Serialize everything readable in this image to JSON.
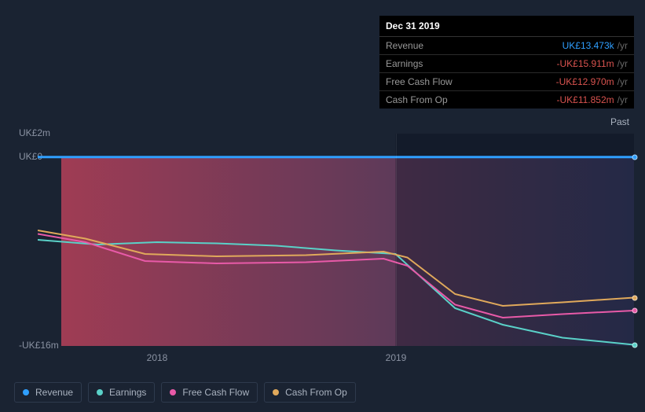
{
  "tooltip": {
    "date": "Dec 31 2019",
    "rows": [
      {
        "label": "Revenue",
        "value": "UK£13.473k",
        "unit": "/yr",
        "cls": "val-blue"
      },
      {
        "label": "Earnings",
        "value": "-UK£15.911m",
        "unit": "/yr",
        "cls": "val-red"
      },
      {
        "label": "Free Cash Flow",
        "value": "-UK£12.970m",
        "unit": "/yr",
        "cls": "val-red"
      },
      {
        "label": "Cash From Op",
        "value": "-UK£11.852m",
        "unit": "/yr",
        "cls": "val-red"
      }
    ]
  },
  "chart": {
    "ymin": -16,
    "ymax": 2,
    "yticks": [
      {
        "v": 2,
        "label": "UK£2m"
      },
      {
        "v": 0,
        "label": "UK£0"
      },
      {
        "v": -16,
        "label": "-UK£16m"
      }
    ],
    "xticks": [
      {
        "x": 0.2,
        "label": "2018"
      },
      {
        "x": 0.6,
        "label": "2019"
      }
    ],
    "past_label": "Past",
    "highlight_x": 0.6,
    "series": [
      {
        "name": "revenue",
        "label": "Revenue",
        "color": "#2f9fff",
        "fill": true,
        "fill_from": "#b7405a",
        "fill_to": "#3c3f6a",
        "points": [
          {
            "x": 0.0,
            "y": 0.013
          },
          {
            "x": 0.1,
            "y": 0.013
          },
          {
            "x": 0.2,
            "y": 0.013
          },
          {
            "x": 0.3,
            "y": 0.013
          },
          {
            "x": 0.4,
            "y": 0.013
          },
          {
            "x": 0.5,
            "y": 0.013
          },
          {
            "x": 0.6,
            "y": 0.013
          },
          {
            "x": 0.7,
            "y": 0.013
          },
          {
            "x": 0.8,
            "y": 0.013
          },
          {
            "x": 0.9,
            "y": 0.013
          },
          {
            "x": 1.0,
            "y": 0.013
          }
        ]
      },
      {
        "name": "earnings",
        "label": "Earnings",
        "color": "#5ad1c8",
        "points": [
          {
            "x": 0.0,
            "y": -7.0
          },
          {
            "x": 0.1,
            "y": -7.4
          },
          {
            "x": 0.2,
            "y": -7.2
          },
          {
            "x": 0.3,
            "y": -7.3
          },
          {
            "x": 0.4,
            "y": -7.5
          },
          {
            "x": 0.5,
            "y": -7.9
          },
          {
            "x": 0.6,
            "y": -8.2
          },
          {
            "x": 0.7,
            "y": -12.8
          },
          {
            "x": 0.78,
            "y": -14.2
          },
          {
            "x": 0.88,
            "y": -15.3
          },
          {
            "x": 1.0,
            "y": -15.9
          }
        ]
      },
      {
        "name": "fcf",
        "label": "Free Cash Flow",
        "color": "#e85aa8",
        "points": [
          {
            "x": 0.0,
            "y": -6.5
          },
          {
            "x": 0.08,
            "y": -7.2
          },
          {
            "x": 0.18,
            "y": -8.8
          },
          {
            "x": 0.3,
            "y": -9.0
          },
          {
            "x": 0.45,
            "y": -8.9
          },
          {
            "x": 0.58,
            "y": -8.6
          },
          {
            "x": 0.62,
            "y": -9.2
          },
          {
            "x": 0.7,
            "y": -12.5
          },
          {
            "x": 0.78,
            "y": -13.6
          },
          {
            "x": 0.88,
            "y": -13.3
          },
          {
            "x": 1.0,
            "y": -13.0
          }
        ]
      },
      {
        "name": "cfo",
        "label": "Cash From Op",
        "color": "#e0a95b",
        "points": [
          {
            "x": 0.0,
            "y": -6.2
          },
          {
            "x": 0.08,
            "y": -6.9
          },
          {
            "x": 0.18,
            "y": -8.2
          },
          {
            "x": 0.3,
            "y": -8.4
          },
          {
            "x": 0.45,
            "y": -8.3
          },
          {
            "x": 0.58,
            "y": -8.0
          },
          {
            "x": 0.62,
            "y": -8.5
          },
          {
            "x": 0.7,
            "y": -11.6
          },
          {
            "x": 0.78,
            "y": -12.6
          },
          {
            "x": 0.88,
            "y": -12.3
          },
          {
            "x": 1.0,
            "y": -11.9
          }
        ]
      }
    ]
  },
  "legend": [
    {
      "label": "Revenue",
      "color": "#2f9fff",
      "key": "revenue"
    },
    {
      "label": "Earnings",
      "color": "#5ad1c8",
      "key": "earnings"
    },
    {
      "label": "Free Cash Flow",
      "color": "#e85aa8",
      "key": "fcf"
    },
    {
      "label": "Cash From Op",
      "color": "#e0a95b",
      "key": "cfo"
    }
  ]
}
